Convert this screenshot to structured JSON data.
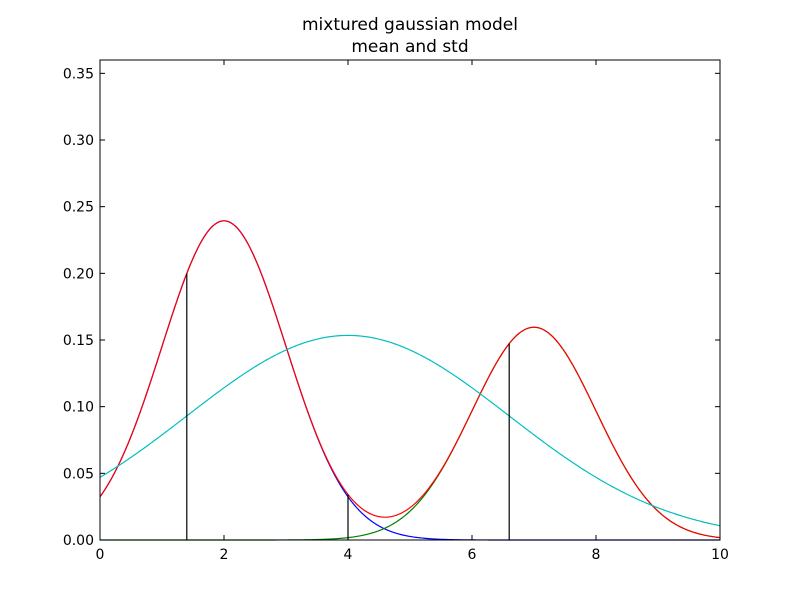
{
  "chart_data": {
    "type": "line",
    "title": [
      "mixtured gaussian model",
      "mean and std"
    ],
    "xlim": [
      0,
      10
    ],
    "ylim": [
      0,
      0.36
    ],
    "xticks": [
      "0",
      "2",
      "4",
      "6",
      "8",
      "10"
    ],
    "yticks": [
      "0.00",
      "0.05",
      "0.10",
      "0.15",
      "0.20",
      "0.25",
      "0.30",
      "0.35"
    ],
    "xtick_values": [
      0,
      2,
      4,
      6,
      8,
      10
    ],
    "ytick_values": [
      0,
      0.05,
      0.1,
      0.15,
      0.2,
      0.25,
      0.3,
      0.35
    ],
    "grid": false,
    "legend": "none",
    "series": [
      {
        "color": "#0000ff",
        "components": [
          {
            "mean": 2,
            "std": 1,
            "weight": 0.6
          }
        ]
      },
      {
        "color": "#008000",
        "components": [
          {
            "mean": 7,
            "std": 1,
            "weight": 0.4
          }
        ]
      },
      {
        "color": "#ff0000",
        "components": [
          {
            "mean": 2,
            "std": 1,
            "weight": 0.6
          },
          {
            "mean": 7,
            "std": 1,
            "weight": 0.4
          }
        ]
      },
      {
        "color": "#00bfbf",
        "components": [
          {
            "mean": 4,
            "std": 2.6,
            "weight": 1.0
          }
        ]
      }
    ],
    "mean_std_lines": {
      "color": "#000000",
      "x": [
        1.4,
        4.0,
        6.6
      ]
    }
  }
}
